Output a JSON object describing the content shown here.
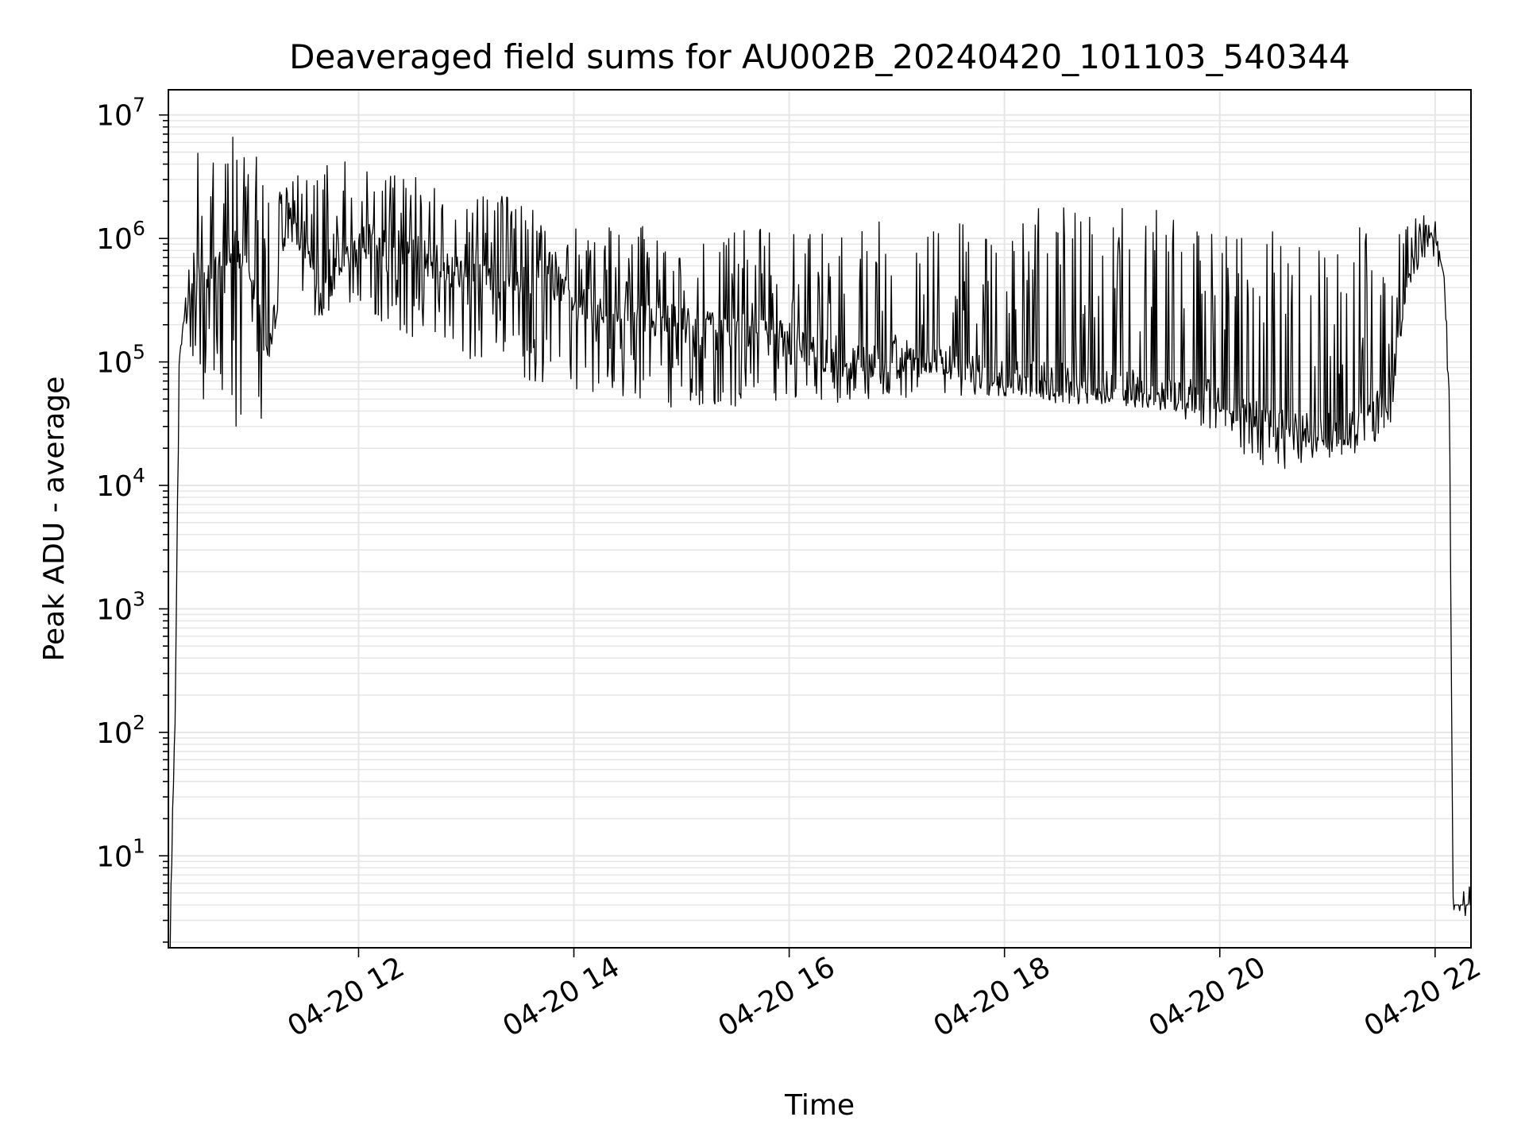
{
  "chart_data": {
    "type": "line",
    "title": "Deaveraged field sums for AU002B_20240420_101103_540344",
    "xlabel": "Time",
    "ylabel": "Peak ADU - average",
    "yscale": "log",
    "ylim": [
      1.8,
      16000000
    ],
    "xlim": [
      "2024-04-20 10:14",
      "2024-04-20 22:20"
    ],
    "grid": true,
    "line_color": "#000000",
    "grid_color": "#e6e6e6",
    "x_ticks": [
      {
        "time": "2024-04-20 12:00",
        "label": "04-20 12"
      },
      {
        "time": "2024-04-20 14:00",
        "label": "04-20 14"
      },
      {
        "time": "2024-04-20 16:00",
        "label": "04-20 16"
      },
      {
        "time": "2024-04-20 18:00",
        "label": "04-20 18"
      },
      {
        "time": "2024-04-20 20:00",
        "label": "04-20 20"
      },
      {
        "time": "2024-04-20 22:00",
        "label": "04-20 22"
      }
    ],
    "y_ticks": [
      {
        "value": 10,
        "base": "10",
        "exp": "1"
      },
      {
        "value": 100,
        "base": "10",
        "exp": "2"
      },
      {
        "value": 1000,
        "base": "10",
        "exp": "3"
      },
      {
        "value": 10000,
        "base": "10",
        "exp": "4"
      },
      {
        "value": 100000,
        "base": "10",
        "exp": "5"
      },
      {
        "value": 1000000,
        "base": "10",
        "exp": "6"
      },
      {
        "value": 10000000,
        "base": "10",
        "exp": "7"
      }
    ],
    "series": [
      {
        "x": [
          "2024-04-20 10:15",
          "2024-04-20 10:18",
          "2024-04-20 10:20",
          "2024-04-20 10:25",
          "2024-04-20 10:30",
          "2024-04-20 10:40",
          "2024-04-20 10:50",
          "2024-04-20 11:00",
          "2024-04-20 11:10",
          "2024-04-20 11:20",
          "2024-04-20 11:30",
          "2024-04-20 11:40",
          "2024-04-20 11:50",
          "2024-04-20 12:00",
          "2024-04-20 12:15",
          "2024-04-20 12:30",
          "2024-04-20 12:45",
          "2024-04-20 13:00",
          "2024-04-20 13:15",
          "2024-04-20 13:30",
          "2024-04-20 13:45",
          "2024-04-20 14:00",
          "2024-04-20 14:30",
          "2024-04-20 15:00",
          "2024-04-20 15:30",
          "2024-04-20 16:00",
          "2024-04-20 16:30",
          "2024-04-20 17:00",
          "2024-04-20 17:30",
          "2024-04-20 18:00",
          "2024-04-20 18:30",
          "2024-04-20 19:00",
          "2024-04-20 19:30",
          "2024-04-20 20:00",
          "2024-04-20 20:20",
          "2024-04-20 20:40",
          "2024-04-20 21:00",
          "2024-04-20 21:20",
          "2024-04-20 21:35",
          "2024-04-20 21:45",
          "2024-04-20 21:55",
          "2024-04-20 22:00",
          "2024-04-20 22:05",
          "2024-04-20 22:08",
          "2024-04-20 22:10",
          "2024-04-20 22:20"
        ],
        "y": [
          2,
          250,
          100000,
          300000,
          600000,
          500000,
          900000,
          600000,
          100000,
          1500000,
          800000,
          300000,
          700000,
          900000,
          1000000,
          800000,
          600000,
          500000,
          450000,
          400000,
          550000,
          300000,
          250000,
          200000,
          180000,
          150000,
          100000,
          110000,
          100000,
          75000,
          70000,
          65000,
          60000,
          50000,
          35000,
          30000,
          28000,
          30000,
          60000,
          500000,
          1000000,
          1000000,
          500000,
          50000,
          4,
          4
        ],
        "y_low": [
          2,
          250,
          100000,
          200000,
          30000,
          50000,
          30000,
          25000,
          30000,
          800000,
          300000,
          200000,
          300000,
          300000,
          200000,
          150000,
          150000,
          100000,
          80000,
          60000,
          60000,
          60000,
          50000,
          40000,
          40000,
          45000,
          45000,
          50000,
          50000,
          50000,
          45000,
          45000,
          40000,
          25000,
          15000,
          13000,
          15000,
          18000,
          30000,
          500000,
          1000000,
          1000000,
          500000,
          50000,
          4,
          4
        ],
        "y_high": [
          2,
          250,
          100000,
          600000,
          6000000,
          4000000,
          8000000,
          5000000,
          4000000,
          4500000,
          4000000,
          4000000,
          4500000,
          4500000,
          4000000,
          4000000,
          3000000,
          2000000,
          2500000,
          2000000,
          1500000,
          1200000,
          1500000,
          800000,
          1200000,
          1200000,
          1200000,
          1500000,
          1600000,
          1600000,
          1900000,
          1800000,
          1700000,
          1300000,
          1200000,
          1100000,
          1200000,
          1300000,
          1500000,
          1900000,
          1500000,
          1000000,
          500000,
          50000,
          4,
          4
        ]
      }
    ]
  }
}
